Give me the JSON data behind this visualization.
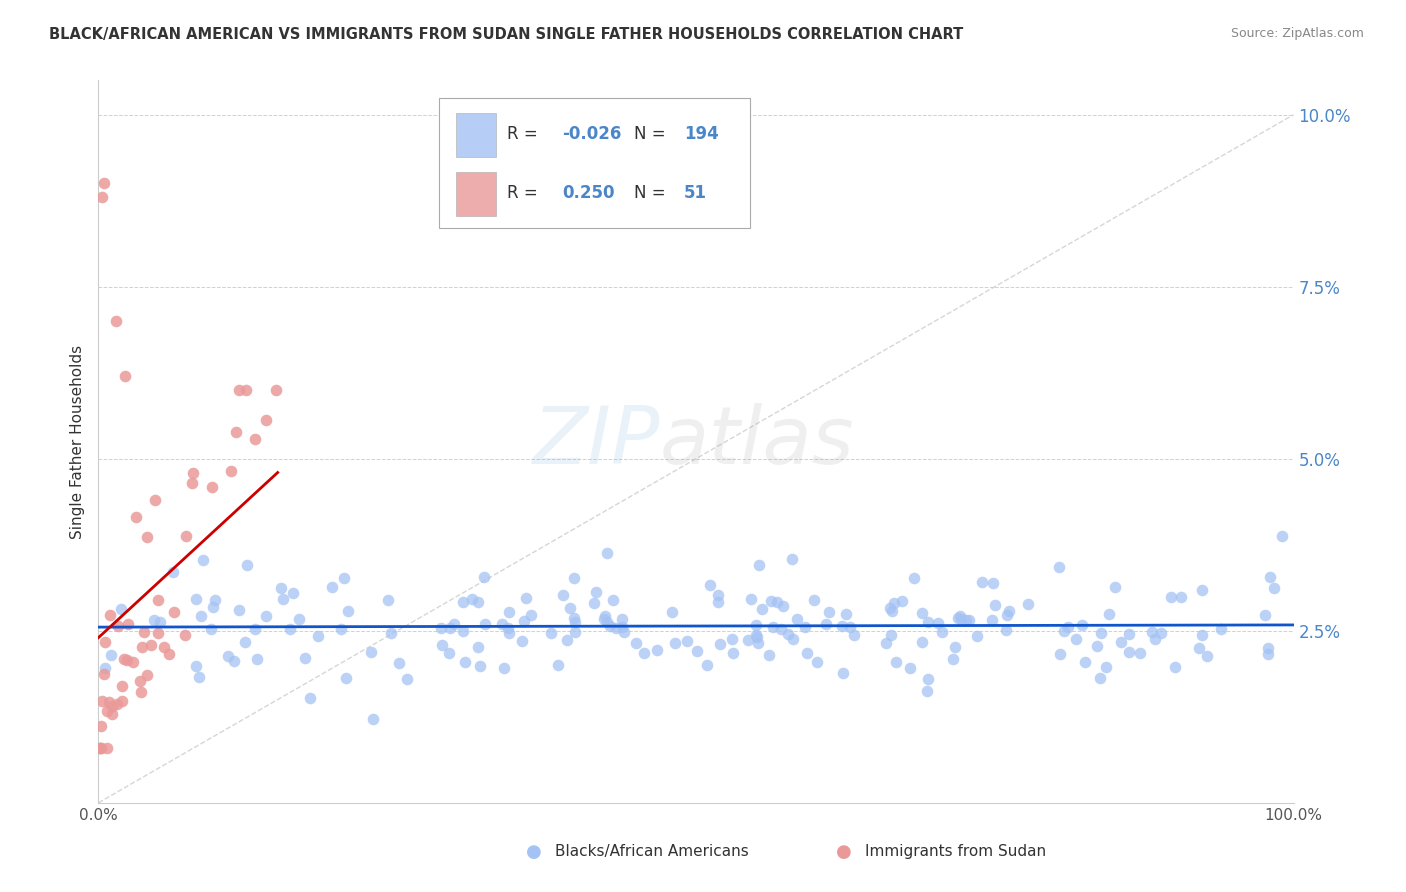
{
  "title": "BLACK/AFRICAN AMERICAN VS IMMIGRANTS FROM SUDAN SINGLE FATHER HOUSEHOLDS CORRELATION CHART",
  "source": "Source: ZipAtlas.com",
  "ylabel": "Single Father Households",
  "legend_r_blue": "-0.026",
  "legend_r_pink": "0.250",
  "legend_n_blue": "194",
  "legend_n_pink": "51",
  "blue_color": "#a4c2f4",
  "pink_color": "#ea9999",
  "blue_line_color": "#1155cc",
  "pink_line_color": "#cc0000",
  "diagonal_color": "#cccccc",
  "watermark_zip_color": "#6fa8dc",
  "watermark_atlas_color": "#999999",
  "background_color": "#ffffff",
  "grid_color": "#cccccc",
  "title_color": "#333333",
  "ytick_color": "#4a86c8",
  "xlim": [
    0,
    100
  ],
  "ylim": [
    0,
    0.105
  ],
  "ytick_vals": [
    0.0,
    0.025,
    0.05,
    0.075,
    0.1
  ],
  "ytick_labels": [
    "",
    "2.5%",
    "5.0%",
    "7.5%",
    "10.0%"
  ]
}
